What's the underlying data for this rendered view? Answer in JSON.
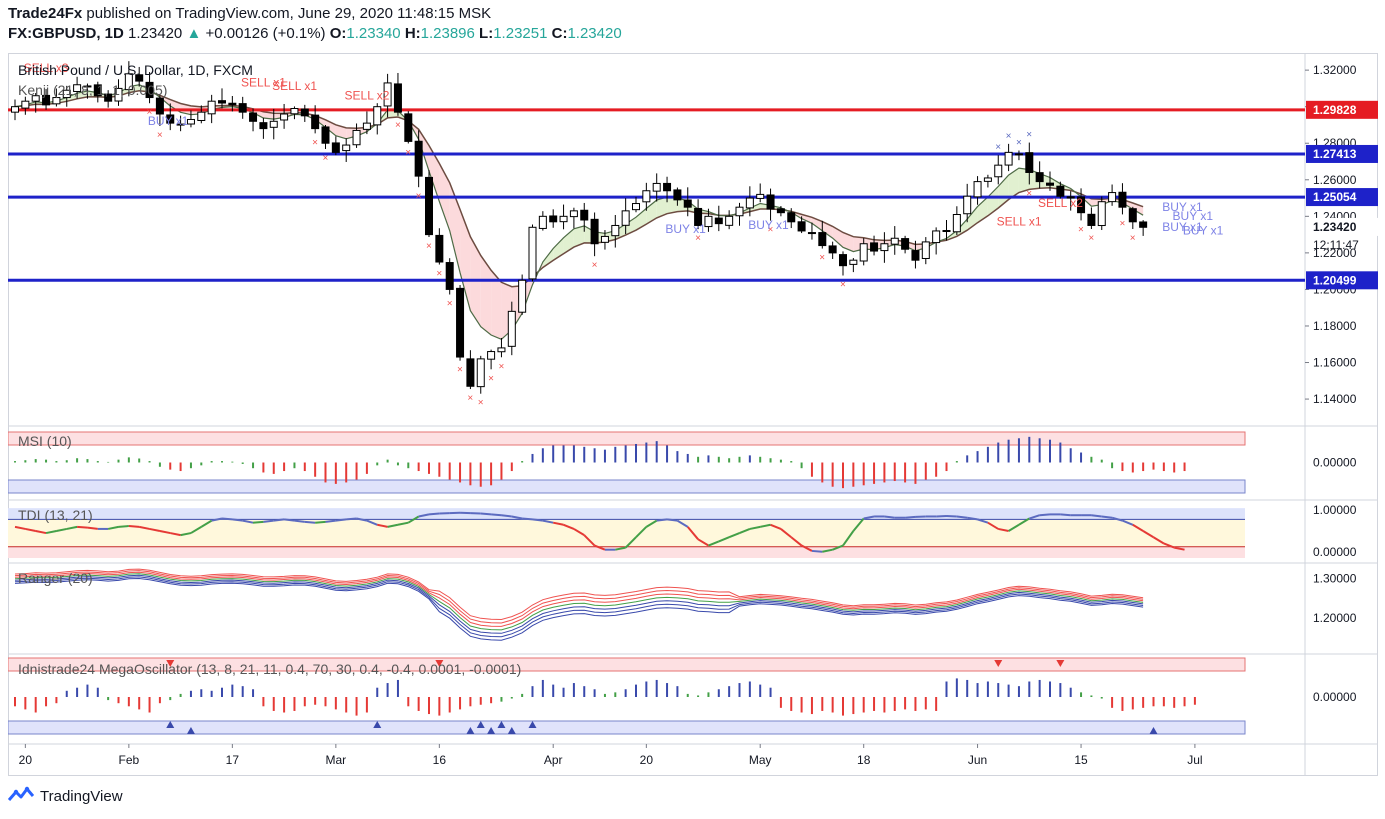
{
  "header": {
    "publisher": "Trade24Fx",
    "published_text": "published on TradingView.com, June 29, 2020 11:48:15 MSK",
    "symbol": "FX:GBPUSD, 1D",
    "last": "1.23420",
    "change_arrow": "▲",
    "change": "+0.00126 (+0.1%)",
    "o_label": "O:",
    "o": "1.23340",
    "h_label": "H:",
    "h": "1.23896",
    "l_label": "L:",
    "l": "1.23251",
    "c_label": "C:",
    "c": "1.23420"
  },
  "footer": {
    "brand": "TradingView",
    "logo_icon": "tradingview-logo-icon"
  },
  "chart_data": {
    "type": "candlestick",
    "title": "British Pound / U.S. Dollar, 1D, FXCM",
    "x_ticks": [
      "20",
      "Feb",
      "17",
      "Mar",
      "16",
      "Apr",
      "20",
      "May",
      "18",
      "Jun",
      "15",
      "Jul"
    ],
    "x_tick_pos": [
      1,
      11,
      21,
      31,
      41,
      52,
      61,
      72,
      82,
      93,
      103,
      114
    ],
    "price_axis": {
      "ylim": [
        1.128,
        1.325
      ],
      "ticks": [
        "1.32000",
        "1.30000",
        "1.28000",
        "1.26000",
        "1.24000",
        "1.22000",
        "1.20000",
        "1.18000",
        "1.16000",
        "1.14000"
      ]
    },
    "price_labels": [
      {
        "text": "1.29828",
        "value": 1.29828,
        "color": "#e51c23"
      },
      {
        "text": "1.27413",
        "value": 1.27413,
        "color": "#1e22c9"
      },
      {
        "text": "1.25054",
        "value": 1.25054,
        "color": "#1e22c9"
      },
      {
        "text": "1.23420",
        "value": 1.2342,
        "color": "#ffffff"
      },
      {
        "text": "1.20499",
        "value": 1.20499,
        "color": "#1e22c9"
      }
    ],
    "countdown": "12:11:47",
    "horizontal_levels": [
      {
        "value": 1.29828,
        "color": "#e51c23"
      },
      {
        "value": 1.27413,
        "color": "#1e22c9"
      },
      {
        "value": 1.25054,
        "color": "#1e22c9"
      },
      {
        "value": 1.20499,
        "color": "#1e22c9"
      }
    ],
    "closes": [
      1.3,
      1.303,
      1.306,
      1.301,
      1.305,
      1.309,
      1.312,
      1.311,
      1.306,
      1.303,
      1.31,
      1.318,
      1.314,
      1.305,
      1.296,
      1.291,
      1.29,
      1.293,
      1.297,
      1.303,
      1.302,
      1.301,
      1.297,
      1.292,
      1.288,
      1.292,
      1.296,
      1.299,
      1.295,
      1.288,
      1.28,
      1.275,
      1.279,
      1.287,
      1.291,
      1.3,
      1.313,
      1.297,
      1.281,
      1.262,
      1.23,
      1.215,
      1.2,
      1.163,
      1.147,
      1.162,
      1.166,
      1.168,
      1.188,
      1.205,
      1.234,
      1.24,
      1.237,
      1.24,
      1.243,
      1.238,
      1.225,
      1.229,
      1.235,
      1.243,
      1.247,
      1.254,
      1.258,
      1.254,
      1.249,
      1.245,
      1.235,
      1.24,
      1.236,
      1.24,
      1.245,
      1.25,
      1.252,
      1.244,
      1.242,
      1.237,
      1.232,
      1.231,
      1.224,
      1.22,
      1.213,
      1.216,
      1.225,
      1.221,
      1.225,
      1.228,
      1.222,
      1.216,
      1.226,
      1.232,
      1.232,
      1.241,
      1.251,
      1.259,
      1.261,
      1.268,
      1.275,
      1.274,
      1.264,
      1.259,
      1.257,
      1.251,
      1.25,
      1.242,
      1.235,
      1.248,
      1.253,
      1.245,
      1.237,
      1.234
    ],
    "signals": [
      {
        "text": "SELL x3",
        "i": 2,
        "value": 1.319,
        "color": "#ef5350"
      },
      {
        "text": "SELL x1",
        "i": 23,
        "value": 1.311,
        "color": "#ef5350"
      },
      {
        "text": "SELL x1",
        "i": 26,
        "value": 1.309,
        "color": "#ef5350"
      },
      {
        "text": "SELL x2",
        "i": 33,
        "value": 1.304,
        "color": "#ef5350"
      },
      {
        "text": "BUY x1",
        "i": 14,
        "value": 1.29,
        "color": "#7e83e6"
      },
      {
        "text": "BUY x1",
        "i": 72,
        "value": 1.233,
        "color": "#7e83e6"
      },
      {
        "text": "BUY x1",
        "i": 64,
        "value": 1.231,
        "color": "#7e83e6"
      },
      {
        "text": "SELL x2",
        "i": 100,
        "value": 1.245,
        "color": "#ef5350"
      },
      {
        "text": "SELL x1",
        "i": 96,
        "value": 1.235,
        "color": "#ef5350"
      },
      {
        "text": "BUY x1",
        "i": 112,
        "value": 1.243,
        "color": "#7e83e6"
      },
      {
        "text": "BUY x1",
        "i": 113,
        "value": 1.238,
        "color": "#7e83e6"
      },
      {
        "text": "BUY x1",
        "i": 112,
        "value": 1.232,
        "color": "#7e83e6"
      },
      {
        "text": "BUY x1",
        "i": 114,
        "value": 1.23,
        "color": "#7e83e6"
      }
    ],
    "panes": [
      {
        "name": "Kenji (21, 8, 1, 1, 0.005)",
        "type": "overlay"
      },
      {
        "name": "MSI (10)",
        "type": "histogram",
        "ticks": [
          "0.00000"
        ],
        "ylim": [
          -1,
          1
        ],
        "values": [
          0.05,
          0.08,
          0.12,
          0.1,
          0.05,
          0.08,
          0.15,
          0.12,
          0.05,
          0.02,
          0.1,
          0.18,
          0.14,
          0.05,
          -0.15,
          -0.25,
          -0.3,
          -0.2,
          -0.1,
          0.05,
          0.05,
          0.03,
          -0.05,
          -0.2,
          -0.35,
          -0.4,
          -0.3,
          -0.2,
          -0.3,
          -0.5,
          -0.7,
          -0.75,
          -0.7,
          -0.6,
          -0.4,
          -0.1,
          0.1,
          -0.1,
          -0.2,
          -0.3,
          -0.4,
          -0.5,
          -0.6,
          -0.7,
          -0.8,
          -0.85,
          -0.8,
          -0.6,
          -0.3,
          0.05,
          0.3,
          0.5,
          0.6,
          0.6,
          0.6,
          0.55,
          0.5,
          0.45,
          0.55,
          0.6,
          0.65,
          0.7,
          0.75,
          0.6,
          0.4,
          0.3,
          0.2,
          0.25,
          0.2,
          0.15,
          0.2,
          0.25,
          0.2,
          0.15,
          0.1,
          0.05,
          -0.2,
          -0.5,
          -0.7,
          -0.85,
          -0.9,
          -0.85,
          -0.8,
          -0.75,
          -0.7,
          -0.65,
          -0.7,
          -0.75,
          -0.6,
          -0.5,
          -0.3,
          0.05,
          0.25,
          0.4,
          0.55,
          0.7,
          0.8,
          0.85,
          0.9,
          0.85,
          0.8,
          0.7,
          0.5,
          0.35,
          0.2,
          0.1,
          -0.2,
          -0.3,
          -0.35,
          -0.3,
          -0.25,
          -0.3,
          -0.35,
          -0.3
        ]
      },
      {
        "name": "TDI (13, 21)",
        "type": "line",
        "ticks": [
          "1.00000",
          "0.00000"
        ],
        "ylim": [
          -0.15,
          1.15
        ],
        "values": [
          0.6,
          0.55,
          0.5,
          0.45,
          0.5,
          0.55,
          0.6,
          0.58,
          0.55,
          0.55,
          0.6,
          0.62,
          0.6,
          0.55,
          0.5,
          0.45,
          0.4,
          0.45,
          0.6,
          0.75,
          0.8,
          0.78,
          0.75,
          0.7,
          0.72,
          0.75,
          0.78,
          0.75,
          0.72,
          0.7,
          0.72,
          0.75,
          0.78,
          0.8,
          0.75,
          0.65,
          0.6,
          0.65,
          0.7,
          0.85,
          0.9,
          0.92,
          0.93,
          0.94,
          0.93,
          0.92,
          0.9,
          0.88,
          0.85,
          0.8,
          0.78,
          0.75,
          0.7,
          0.65,
          0.55,
          0.4,
          0.15,
          0.05,
          0.05,
          0.1,
          0.35,
          0.6,
          0.75,
          0.78,
          0.75,
          0.6,
          0.3,
          0.15,
          0.25,
          0.35,
          0.45,
          0.55,
          0.6,
          0.65,
          0.55,
          0.35,
          0.15,
          0.02,
          0.0,
          0.05,
          0.15,
          0.5,
          0.8,
          0.85,
          0.85,
          0.82,
          0.82,
          0.84,
          0.85,
          0.85,
          0.86,
          0.85,
          0.82,
          0.78,
          0.7,
          0.55,
          0.5,
          0.65,
          0.8,
          0.88,
          0.9,
          0.9,
          0.88,
          0.88,
          0.88,
          0.85,
          0.82,
          0.75,
          0.65,
          0.5,
          0.35,
          0.2,
          0.1,
          0.05
        ]
      },
      {
        "name": "Ranger (20)",
        "type": "bands",
        "ticks": [
          "1.30000",
          "1.20000"
        ],
        "ylim": [
          1.12,
          1.33
        ]
      },
      {
        "name": "Idnistrade24 MegaOscillator (13, 8, 21, 11, 0.4, 70, 30, 0.4, -0.4, 0.0001, -0.0001)",
        "type": "histogram",
        "ticks": [
          "0.00000"
        ],
        "ylim": [
          -1,
          1
        ],
        "values": [
          -0.3,
          -0.4,
          -0.5,
          -0.3,
          -0.2,
          0.2,
          0.3,
          0.4,
          0.3,
          -0.1,
          -0.2,
          -0.3,
          -0.4,
          -0.5,
          -0.2,
          -0.1,
          0.1,
          0.2,
          0.25,
          0.2,
          0.3,
          0.4,
          0.35,
          0.25,
          -0.3,
          -0.45,
          -0.5,
          -0.45,
          -0.3,
          -0.25,
          -0.3,
          -0.4,
          -0.5,
          -0.6,
          -0.5,
          0.3,
          0.45,
          0.55,
          -0.3,
          -0.45,
          -0.55,
          -0.6,
          -0.5,
          -0.4,
          -0.3,
          -0.25,
          -0.2,
          -0.15,
          -0.05,
          0.1,
          0.35,
          0.55,
          0.4,
          0.3,
          0.45,
          0.35,
          0.25,
          0.1,
          0.15,
          0.25,
          0.4,
          0.5,
          0.55,
          0.45,
          0.35,
          0.1,
          0.05,
          0.15,
          0.25,
          0.35,
          0.45,
          0.5,
          0.4,
          0.3,
          -0.35,
          -0.45,
          -0.5,
          -0.55,
          -0.45,
          -0.5,
          -0.6,
          -0.55,
          -0.5,
          -0.45,
          -0.5,
          -0.45,
          -0.4,
          -0.45,
          -0.4,
          -0.45,
          0.5,
          0.6,
          0.55,
          0.45,
          0.5,
          0.45,
          0.4,
          0.35,
          0.5,
          0.55,
          0.5,
          0.45,
          0.3,
          0.15,
          0.05,
          -0.05,
          -0.35,
          -0.45,
          -0.4,
          -0.35,
          -0.3,
          -0.3,
          -0.35,
          -0.3,
          -0.25
        ]
      }
    ]
  }
}
